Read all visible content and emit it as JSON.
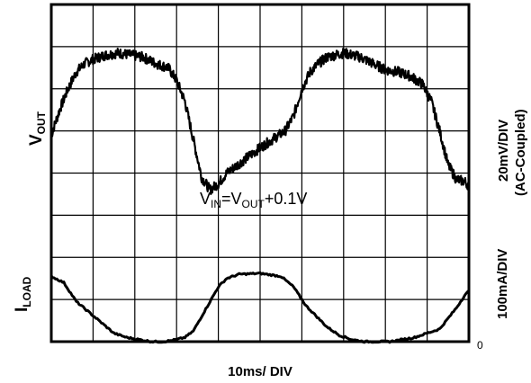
{
  "chart_data": {
    "type": "line",
    "grid": true,
    "grid_divisions": {
      "x": 10,
      "y": 8
    },
    "xlabel": "10ms/ DIV",
    "x_units": "divisions",
    "xlim": [
      0,
      10
    ],
    "ylim": [
      0,
      8
    ],
    "colors": {
      "trace": "#000000",
      "grid": "#000000",
      "background": "#ffffff"
    },
    "vout_label": {
      "main": "V",
      "sub": "OUT"
    },
    "iload_label": {
      "main": "I",
      "sub": "LOAD"
    },
    "right_scale": {
      "top_line1": "20mV/DIV",
      "top_line2": "(AC-Coupled)",
      "bottom": "100mA/DIV",
      "zero": "0"
    },
    "annotation": {
      "v1": "V",
      "s1": "IN",
      "eq": "=",
      "v2": "V",
      "s2": "OUT",
      "tail": "+0.1V"
    },
    "series": [
      {
        "noise_div": 0.12,
        "x": [
          0,
          0.2,
          0.4,
          0.6,
          0.8,
          1.0,
          1.3,
          1.6,
          1.9,
          2.2,
          2.5,
          2.8,
          3.0,
          3.2,
          3.4,
          3.6,
          3.8,
          4.0,
          4.2,
          4.4,
          4.6,
          4.8,
          5.0,
          5.3,
          5.6,
          5.8,
          6.0,
          6.2,
          6.4,
          6.6,
          6.8,
          7.0,
          7.2,
          7.4,
          7.6,
          7.8,
          8.0,
          8.3,
          8.6,
          8.9,
          9.1,
          9.3,
          9.5,
          9.7,
          9.9,
          10.0
        ],
        "y": [
          4.9,
          5.5,
          6.0,
          6.4,
          6.6,
          6.7,
          6.8,
          6.85,
          6.8,
          6.75,
          6.6,
          6.5,
          6.2,
          5.7,
          4.8,
          3.9,
          3.6,
          3.75,
          4.0,
          4.15,
          4.3,
          4.45,
          4.6,
          4.8,
          5.0,
          5.35,
          6.0,
          6.4,
          6.6,
          6.75,
          6.8,
          6.85,
          6.8,
          6.75,
          6.65,
          6.55,
          6.45,
          6.4,
          6.3,
          6.1,
          5.7,
          5.0,
          4.2,
          3.85,
          3.8,
          3.7
        ]
      },
      {
        "noise_div": 0.02,
        "x": [
          0,
          0.3,
          0.6,
          0.9,
          1.2,
          1.5,
          1.8,
          2.1,
          2.4,
          2.7,
          3.0,
          3.2,
          3.4,
          3.6,
          3.8,
          4.0,
          4.2,
          4.5,
          5.0,
          5.5,
          5.8,
          6.1,
          6.4,
          6.6,
          6.9,
          7.2,
          7.5,
          7.8,
          8.1,
          8.4,
          8.7,
          9.0,
          9.3,
          9.5,
          9.7,
          9.9,
          10.0
        ],
        "y": [
          1.55,
          1.4,
          0.95,
          0.7,
          0.45,
          0.2,
          0.1,
          0.05,
          0.0,
          0.0,
          0.05,
          0.1,
          0.25,
          0.6,
          0.95,
          1.3,
          1.5,
          1.6,
          1.62,
          1.55,
          1.3,
          0.85,
          0.55,
          0.35,
          0.15,
          0.05,
          0.0,
          0.0,
          0.0,
          0.05,
          0.1,
          0.2,
          0.3,
          0.55,
          0.8,
          1.1,
          1.2
        ]
      }
    ]
  }
}
